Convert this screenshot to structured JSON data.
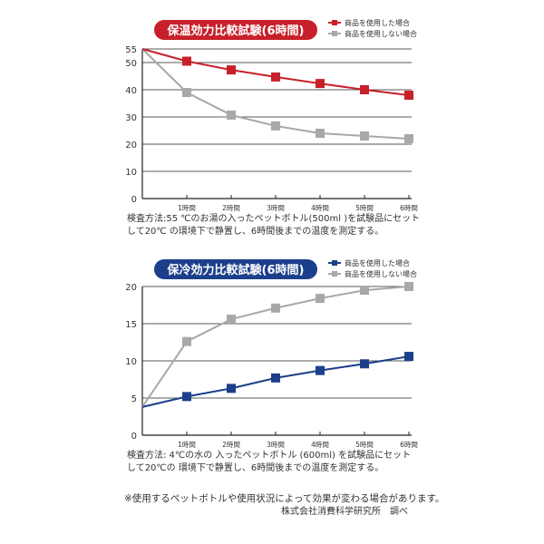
{
  "chart_data": [
    {
      "type": "line",
      "title": "保温効力比較試験(6時間)",
      "title_color": "#c8202a",
      "x": [
        0,
        1,
        2,
        3,
        4,
        5,
        6
      ],
      "categories": [
        "",
        "1時間",
        "2時間",
        "3時間",
        "4時間",
        "5時間",
        "6時間"
      ],
      "ylim": [
        0,
        55
      ],
      "yticks": [
        0,
        10,
        20,
        30,
        40,
        50,
        55
      ],
      "grid": true,
      "legend": "top-right",
      "series": [
        {
          "name": "商品を使用した場合",
          "color": "#c8202a",
          "values": [
            55,
            50.5,
            47.3,
            44.7,
            42.3,
            40,
            38
          ]
        },
        {
          "name": "商品を使用しない場合",
          "color": "#a8a8a8",
          "values": [
            55,
            39,
            30.7,
            26.7,
            24,
            23,
            22
          ]
        }
      ],
      "note": [
        "検査方法:55 ℃のお湯の入ったペットボトル(500ml )を試験品にセット",
        "して20℃ の環境下で静置し、6時間後までの温度を測定する。"
      ]
    },
    {
      "type": "line",
      "title": "保冷効力比較試験(6時間)",
      "title_color": "#1b3f8b",
      "x": [
        0,
        1,
        2,
        3,
        4,
        5,
        6
      ],
      "categories": [
        "",
        "1時間",
        "2時間",
        "3時間",
        "4時間",
        "5時間",
        "6時間"
      ],
      "ylim": [
        0,
        20
      ],
      "yticks": [
        0,
        5,
        10,
        15,
        20
      ],
      "grid": true,
      "legend": "top-right",
      "series": [
        {
          "name": "商品を使用した場合",
          "color": "#1b3f8b",
          "values": [
            3.8,
            5.2,
            6.3,
            7.7,
            8.7,
            9.6,
            10.6
          ]
        },
        {
          "name": "商品を使用しない場合",
          "color": "#a8a8a8",
          "values": [
            3.8,
            12.6,
            15.6,
            17.1,
            18.4,
            19.5,
            20
          ]
        }
      ],
      "note": [
        "検査方法: 4℃の水の 入ったペットボトル (600ml) を試験品にセット",
        "して20℃の 環境下で静置し、6時間後までの温度を測定する。"
      ]
    }
  ],
  "footer": {
    "disclaimer": "※使用するペットボトルや使用状況によって効果が変わる場合があります。",
    "credit": "株式会社消費科学研究所　調べ"
  }
}
